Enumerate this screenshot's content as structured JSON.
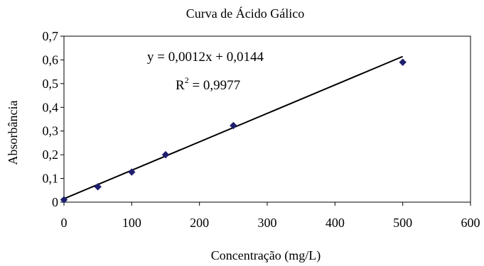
{
  "chart_data": {
    "type": "scatter",
    "title": "Curva de Ácido Gálico",
    "xlabel": "Concentração (mg/L)",
    "ylabel": "Absorbância",
    "xlim": [
      0,
      600
    ],
    "ylim": [
      0,
      0.7
    ],
    "x_ticks": [
      0,
      100,
      200,
      300,
      400,
      500,
      600
    ],
    "y_ticks": [
      0,
      0.1,
      0.2,
      0.3,
      0.4,
      0.5,
      0.6,
      0.7
    ],
    "x_tick_labels": [
      "0",
      "100",
      "200",
      "300",
      "400",
      "500",
      "600"
    ],
    "y_tick_labels": [
      "0",
      "0,1",
      "0,2",
      "0,3",
      "0,4",
      "0,5",
      "0,6",
      "0,7"
    ],
    "grid": false,
    "legend": "none",
    "series": [
      {
        "x": [
          0,
          50,
          100,
          150,
          250,
          500
        ],
        "y": [
          0.01,
          0.065,
          0.127,
          0.2,
          0.323,
          0.59
        ],
        "marker": "diamond",
        "color": "#1f1f6e"
      }
    ],
    "trendline": {
      "type": "linear",
      "slope": 0.0012,
      "intercept": 0.0144,
      "x_range": [
        0,
        500
      ],
      "color": "#000000",
      "equation_label": "y = 0,0012x + 0,0144",
      "r2_prefix": "R",
      "r2_sup": "2",
      "r2_value": " = 0,9977"
    }
  }
}
